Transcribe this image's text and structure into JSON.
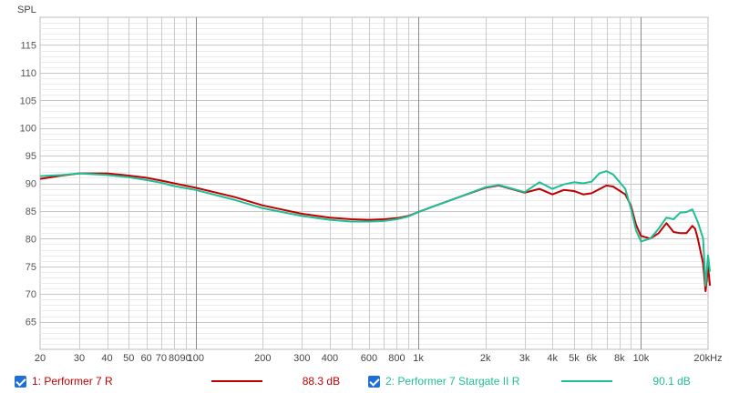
{
  "chart_data": {
    "type": "line",
    "ylabel": "SPL",
    "x_scale": "log",
    "xlim": [
      20,
      20000
    ],
    "ylim": [
      60,
      120
    ],
    "grid": true,
    "x_ticks": [
      {
        "v": 20,
        "label": "20"
      },
      {
        "v": 30,
        "label": "30"
      },
      {
        "v": 40,
        "label": "40"
      },
      {
        "v": 50,
        "label": "50"
      },
      {
        "v": 60,
        "label": "60"
      },
      {
        "v": 70,
        "label": "70"
      },
      {
        "v": 80,
        "label": "80"
      },
      {
        "v": 90,
        "label": "90"
      },
      {
        "v": 100,
        "label": "100"
      },
      {
        "v": 200,
        "label": "200"
      },
      {
        "v": 300,
        "label": "300"
      },
      {
        "v": 400,
        "label": "400"
      },
      {
        "v": 600,
        "label": "600"
      },
      {
        "v": 800,
        "label": "800"
      },
      {
        "v": 1000,
        "label": "1k"
      },
      {
        "v": 2000,
        "label": "2k"
      },
      {
        "v": 3000,
        "label": "3k"
      },
      {
        "v": 4000,
        "label": "4k"
      },
      {
        "v": 5000,
        "label": "5k"
      },
      {
        "v": 6000,
        "label": "6k"
      },
      {
        "v": 8000,
        "label": "8k"
      },
      {
        "v": 10000,
        "label": "10k"
      },
      {
        "v": 20000,
        "label": "20kHz"
      }
    ],
    "y_ticks": [
      65,
      70,
      75,
      80,
      85,
      90,
      95,
      100,
      105,
      110,
      115
    ],
    "series": [
      {
        "name": "1: Performer 7 R",
        "color": "#c00000",
        "level": "88.3 dB",
        "points": [
          [
            20,
            90.8
          ],
          [
            25,
            91.4
          ],
          [
            30,
            91.8
          ],
          [
            40,
            91.8
          ],
          [
            50,
            91.4
          ],
          [
            60,
            91.0
          ],
          [
            70,
            90.5
          ],
          [
            80,
            90.0
          ],
          [
            100,
            89.2
          ],
          [
            150,
            87.5
          ],
          [
            200,
            86.0
          ],
          [
            300,
            84.5
          ],
          [
            400,
            83.8
          ],
          [
            500,
            83.5
          ],
          [
            600,
            83.4
          ],
          [
            700,
            83.5
          ],
          [
            800,
            83.7
          ],
          [
            900,
            84.1
          ],
          [
            1000,
            84.8
          ],
          [
            1200,
            86.0
          ],
          [
            1500,
            87.4
          ],
          [
            2000,
            89.2
          ],
          [
            2300,
            89.6
          ],
          [
            2600,
            89.0
          ],
          [
            3000,
            88.3
          ],
          [
            3500,
            89.0
          ],
          [
            4000,
            88.0
          ],
          [
            4500,
            88.8
          ],
          [
            5000,
            88.6
          ],
          [
            5500,
            88.0
          ],
          [
            6000,
            88.2
          ],
          [
            7000,
            89.6
          ],
          [
            7500,
            89.4
          ],
          [
            8500,
            88.0
          ],
          [
            9000,
            86.0
          ],
          [
            9500,
            82.5
          ],
          [
            10000,
            80.5
          ],
          [
            11000,
            80.0
          ],
          [
            12000,
            81.0
          ],
          [
            13000,
            82.8
          ],
          [
            14000,
            81.2
          ],
          [
            15000,
            81.0
          ],
          [
            16000,
            81.0
          ],
          [
            17000,
            82.3
          ],
          [
            17500,
            81.8
          ],
          [
            18000,
            80.0
          ],
          [
            19000,
            75.5
          ],
          [
            19500,
            70.5
          ],
          [
            20000,
            75.0
          ],
          [
            20400,
            71.5
          ]
        ]
      },
      {
        "name": "2: Performer 7 Stargate II R",
        "color": "#1fbf96",
        "level": "90.1 dB",
        "points": [
          [
            20,
            91.3
          ],
          [
            25,
            91.5
          ],
          [
            30,
            91.8
          ],
          [
            40,
            91.5
          ],
          [
            50,
            91.1
          ],
          [
            60,
            90.6
          ],
          [
            70,
            90.1
          ],
          [
            80,
            89.5
          ],
          [
            100,
            88.8
          ],
          [
            150,
            87.0
          ],
          [
            200,
            85.5
          ],
          [
            300,
            84.1
          ],
          [
            400,
            83.4
          ],
          [
            500,
            83.1
          ],
          [
            600,
            83.1
          ],
          [
            700,
            83.2
          ],
          [
            800,
            83.5
          ],
          [
            900,
            84.0
          ],
          [
            1000,
            84.8
          ],
          [
            1200,
            86.0
          ],
          [
            1500,
            87.4
          ],
          [
            2000,
            89.3
          ],
          [
            2300,
            89.7
          ],
          [
            2600,
            89.1
          ],
          [
            3000,
            88.4
          ],
          [
            3500,
            90.2
          ],
          [
            4000,
            89.0
          ],
          [
            4500,
            89.8
          ],
          [
            5000,
            90.2
          ],
          [
            5500,
            90.0
          ],
          [
            6000,
            90.3
          ],
          [
            6500,
            91.8
          ],
          [
            7000,
            92.2
          ],
          [
            7500,
            91.6
          ],
          [
            8500,
            89.0
          ],
          [
            9000,
            85.5
          ],
          [
            9500,
            81.5
          ],
          [
            10000,
            79.5
          ],
          [
            11000,
            80.0
          ],
          [
            12000,
            81.8
          ],
          [
            13000,
            83.8
          ],
          [
            14000,
            83.5
          ],
          [
            15000,
            84.7
          ],
          [
            16000,
            84.8
          ],
          [
            17000,
            85.3
          ],
          [
            18000,
            83.0
          ],
          [
            19000,
            80.0
          ],
          [
            19500,
            71.5
          ],
          [
            20000,
            77.0
          ],
          [
            20400,
            74.0
          ]
        ]
      }
    ]
  }
}
